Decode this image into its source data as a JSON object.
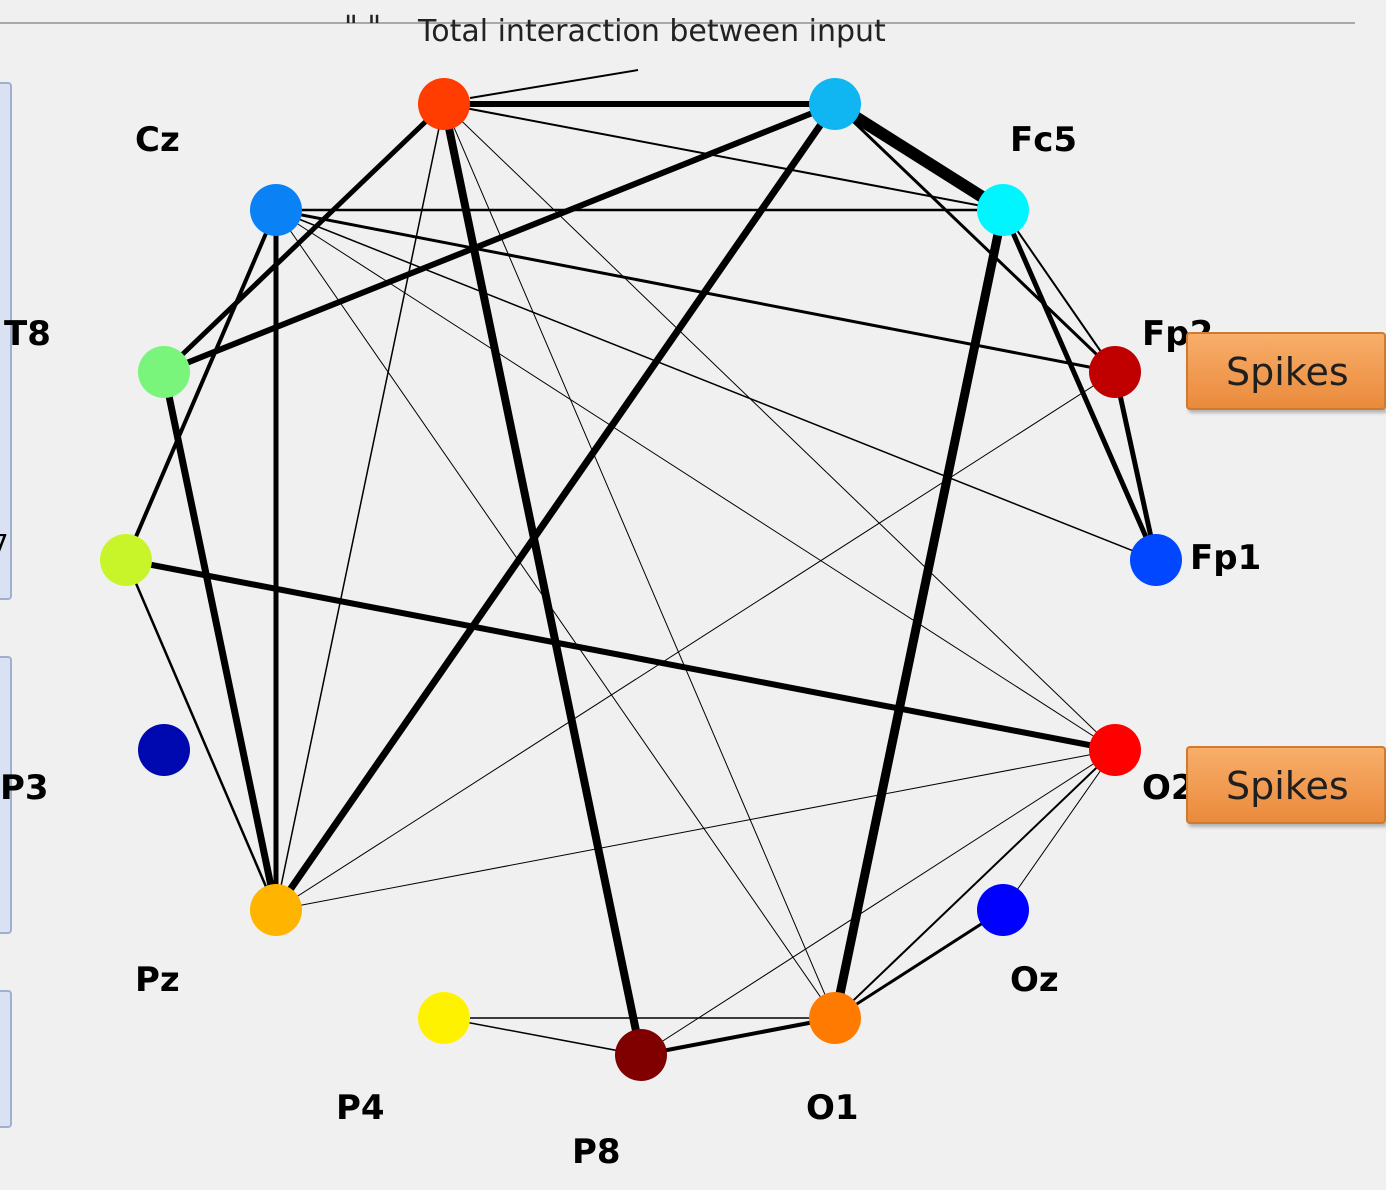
{
  "title": "Total interaction between input",
  "title_mark": "\" \"",
  "buttons": {
    "spikes_top": "Spikes",
    "spikes_bottom": "Spikes"
  },
  "side_labels": {
    "t8": "T8",
    "p3": "P3",
    "partial": "7"
  },
  "nodes": [
    {
      "id": "top-left",
      "label": "",
      "color": "#ff3d00"
    },
    {
      "id": "top-right",
      "label": "",
      "color": "#10b6f2"
    },
    {
      "id": "Cz",
      "label": "Cz",
      "color": "#0a82f5"
    },
    {
      "id": "Fc5",
      "label": "Fc5",
      "color": "#00f5ff"
    },
    {
      "id": "Fp2",
      "label": "Fp2",
      "color": "#c00000"
    },
    {
      "id": "Fp1",
      "label": "Fp1",
      "color": "#0047ff"
    },
    {
      "id": "green",
      "label": "",
      "color": "#78f57a"
    },
    {
      "id": "lime",
      "label": "",
      "color": "#c8f52a"
    },
    {
      "id": "navy",
      "label": "",
      "color": "#0008b0"
    },
    {
      "id": "Pz",
      "label": "Pz",
      "color": "#ffb400"
    },
    {
      "id": "P4",
      "label": "P4",
      "color": "#fff200"
    },
    {
      "id": "P8",
      "label": "P8",
      "color": "#800000"
    },
    {
      "id": "O1",
      "label": "O1",
      "color": "#ff7a00"
    },
    {
      "id": "Oz",
      "label": "Oz",
      "color": "#0000ff"
    },
    {
      "id": "O2",
      "label": "O2",
      "color": "#ff0000"
    }
  ],
  "edges": [
    {
      "from": "top-left",
      "to": "top-right",
      "weight": 6
    },
    {
      "from": "top-left",
      "to": "Fc5",
      "weight": 2
    },
    {
      "from": "top-left",
      "to": "P8",
      "weight": 8
    },
    {
      "from": "top-left",
      "to": "green",
      "weight": 5
    },
    {
      "from": "top-left",
      "to": "Pz",
      "weight": 1.5
    },
    {
      "from": "top-left",
      "to": "O1",
      "weight": 1
    },
    {
      "from": "top-left",
      "to": "O2",
      "weight": 1
    },
    {
      "from": "top-right",
      "to": "Fc5",
      "weight": 12
    },
    {
      "from": "top-right",
      "to": "Fp2",
      "weight": 3
    },
    {
      "from": "top-right",
      "to": "green",
      "weight": 6
    },
    {
      "from": "top-right",
      "to": "Pz",
      "weight": 7
    },
    {
      "from": "Cz",
      "to": "Fc5",
      "weight": 2.5
    },
    {
      "from": "Cz",
      "to": "Fp2",
      "weight": 3
    },
    {
      "from": "Cz",
      "to": "Fp1",
      "weight": 1.5
    },
    {
      "from": "Cz",
      "to": "O2",
      "weight": 1
    },
    {
      "from": "Cz",
      "to": "O1",
      "weight": 1
    },
    {
      "from": "Cz",
      "to": "Pz",
      "weight": 5
    },
    {
      "from": "Cz",
      "to": "lime",
      "weight": 4
    },
    {
      "from": "Fc5",
      "to": "Fp1",
      "weight": 5
    },
    {
      "from": "Fc5",
      "to": "Fp2",
      "weight": 2
    },
    {
      "from": "Fc5",
      "to": "O1",
      "weight": 9
    },
    {
      "from": "Fp2",
      "to": "Fp1",
      "weight": 5
    },
    {
      "from": "Fp2",
      "to": "Pz",
      "weight": 1
    },
    {
      "from": "green",
      "to": "Pz",
      "weight": 7
    },
    {
      "from": "lime",
      "to": "O2",
      "weight": 6
    },
    {
      "from": "lime",
      "to": "Pz",
      "weight": 2.5
    },
    {
      "from": "Pz",
      "to": "O2",
      "weight": 1
    },
    {
      "from": "P4",
      "to": "O1",
      "weight": 1.5
    },
    {
      "from": "P4",
      "to": "P8",
      "weight": 1.5
    },
    {
      "from": "P8",
      "to": "O1",
      "weight": 4
    },
    {
      "from": "P8",
      "to": "O2",
      "weight": 1
    },
    {
      "from": "O1",
      "to": "O2",
      "weight": 2
    },
    {
      "from": "O1",
      "to": "Oz",
      "weight": 3
    },
    {
      "from": "Oz",
      "to": "O2",
      "weight": 1
    }
  ]
}
